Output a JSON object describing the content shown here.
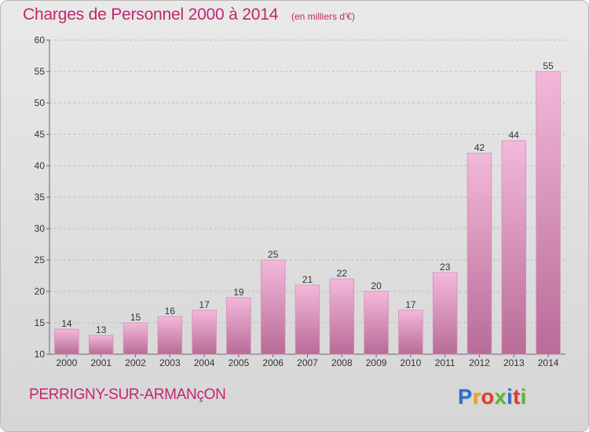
{
  "header": {
    "title": "Charges de Personnel 2000 à 2014",
    "subtitle": "(en milliers d'€)"
  },
  "footer": {
    "commune": "PERRIGNY-SUR-ARMANçON",
    "brand_letters": [
      "P",
      "r",
      "o",
      "x",
      "i",
      "t",
      "i"
    ],
    "brand_colors": [
      "#2a6fc9",
      "#f0a018",
      "#e23c28",
      "#62b530",
      "#2a6fc9",
      "#e23c28",
      "#62b530"
    ]
  },
  "colors": {
    "title": "#c2266d",
    "bar_light": "#f3b8da",
    "bar_dark": "#b86b97"
  },
  "chart_data": {
    "type": "bar",
    "title": "Charges de Personnel 2000 à 2014",
    "subtitle": "(en milliers d'€)",
    "categories": [
      "2000",
      "2001",
      "2002",
      "2003",
      "2004",
      "2005",
      "2006",
      "2007",
      "2008",
      "2009",
      "2010",
      "2011",
      "2012",
      "2013",
      "2014"
    ],
    "values": [
      14,
      13,
      15,
      16,
      17,
      19,
      25,
      21,
      22,
      20,
      17,
      23,
      42,
      44,
      55
    ],
    "ylim": [
      10,
      60
    ],
    "yticks": [
      10,
      15,
      20,
      25,
      30,
      35,
      40,
      45,
      50,
      55,
      60
    ],
    "grid": true,
    "data_labels": true
  }
}
